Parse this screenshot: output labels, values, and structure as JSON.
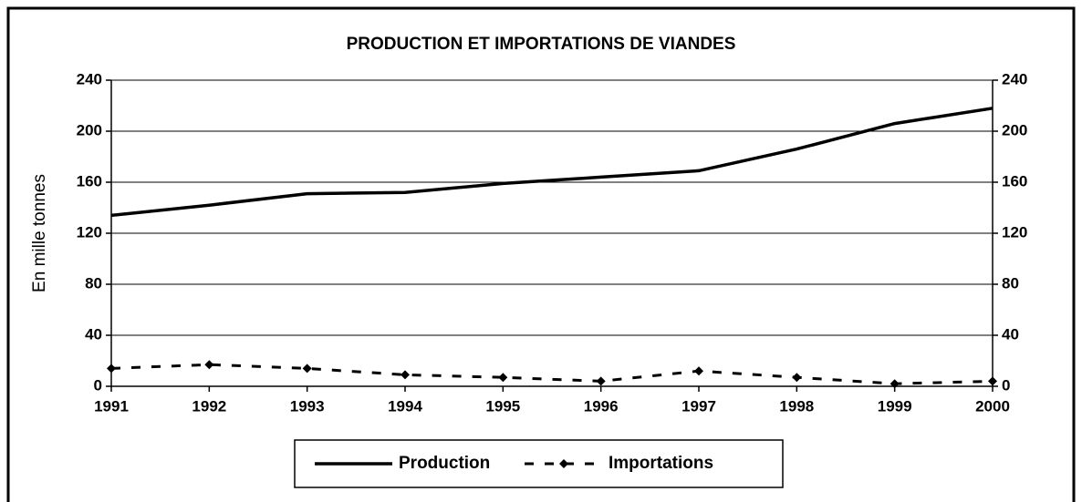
{
  "chart_data": {
    "type": "line",
    "title": "PRODUCTION ET IMPORTATIONS DE VIANDES",
    "y_label": "En mille tonnes",
    "categories": [
      "1991",
      "1992",
      "1993",
      "1994",
      "1995",
      "1996",
      "1997",
      "1998",
      "1999",
      "2000"
    ],
    "series": [
      {
        "name": "Production",
        "color": "#000000",
        "style": "solid",
        "values": [
          134,
          142,
          151,
          152,
          159,
          164,
          169,
          186,
          206,
          218
        ]
      },
      {
        "name": "Importations",
        "color": "#000000",
        "style": "dashed",
        "values": [
          14,
          17,
          14,
          9,
          7,
          4,
          12,
          7,
          2,
          4
        ]
      }
    ],
    "ylim": [
      0,
      240
    ],
    "yticks": [
      0,
      40,
      80,
      120,
      160,
      200,
      240
    ],
    "y2lim": [
      0,
      240
    ],
    "y2ticks": [
      0,
      40,
      80,
      120,
      160,
      200,
      240
    ],
    "grid": true,
    "legend": "bottom"
  }
}
